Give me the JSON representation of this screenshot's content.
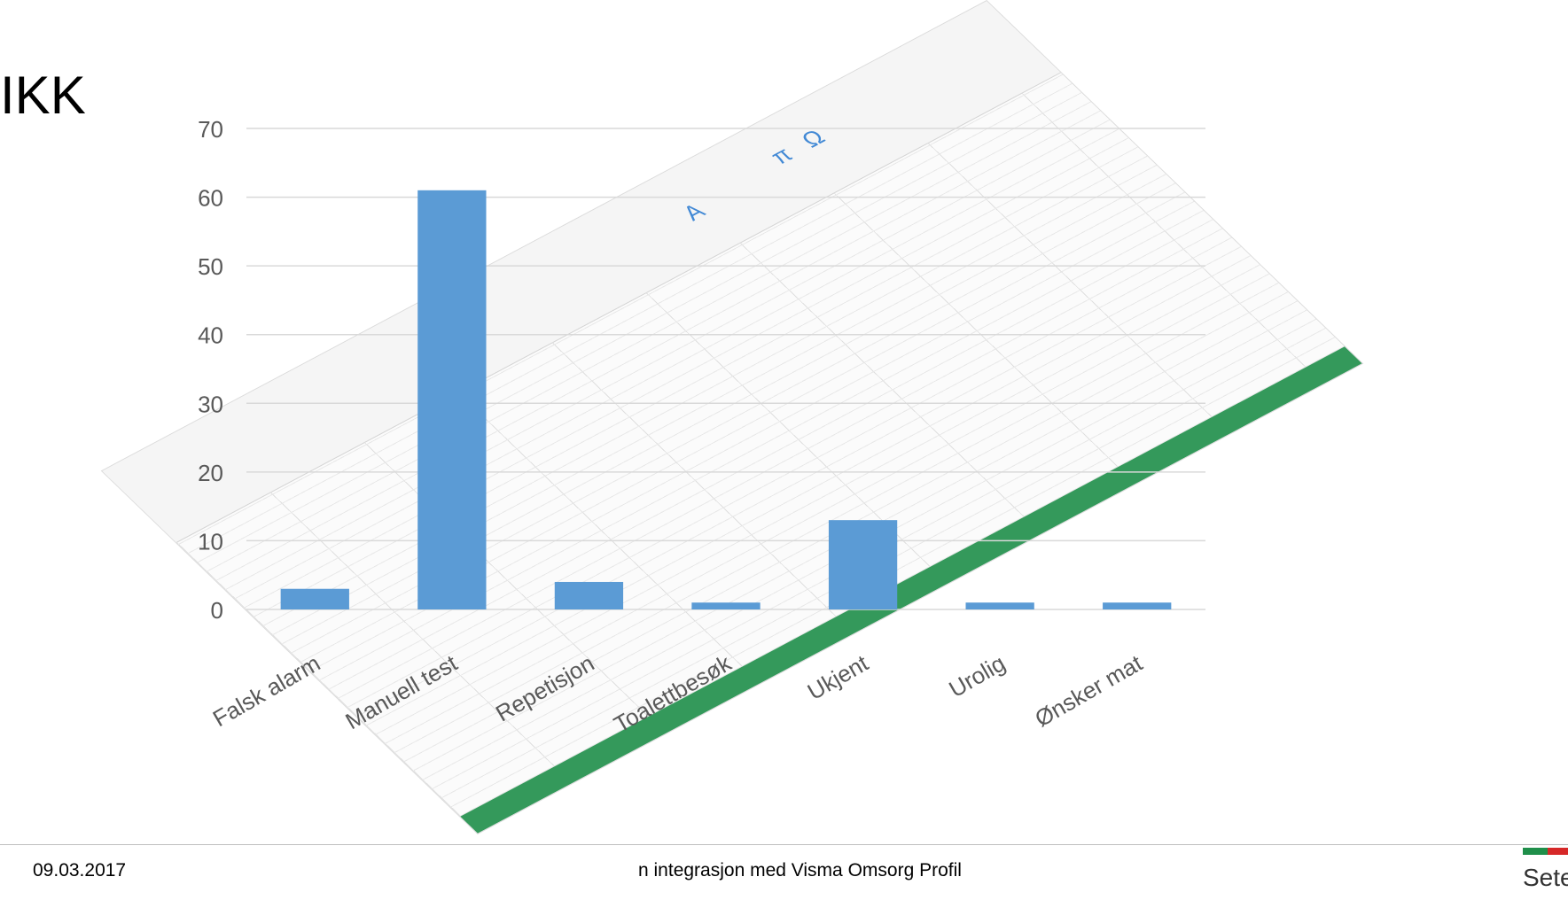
{
  "slide": {
    "title_fragment": "IKK",
    "footer_date": "09.03.2017",
    "footer_text": "n integrasjon med Visma Omsorg Profil",
    "logo_text": "Sete"
  },
  "colors": {
    "bar": "#5b9bd5",
    "grid": "#d9d9d9",
    "axis_text": "#595959",
    "sheet_green": "#1f8f4a"
  },
  "chart_data": {
    "type": "bar",
    "categories": [
      "Falsk alarm",
      "Manuell test",
      "Repetisjon",
      "Toalettbesøk",
      "Ukjent",
      "Urolig",
      "Ønsker mat"
    ],
    "values": [
      3,
      61,
      4,
      1,
      13,
      1,
      1
    ],
    "yticks": [
      0,
      10,
      20,
      30,
      40,
      50,
      60,
      70
    ],
    "ylim": [
      0,
      70
    ],
    "title": "",
    "xlabel": "",
    "ylabel": "",
    "grid": true,
    "legend": "none"
  }
}
